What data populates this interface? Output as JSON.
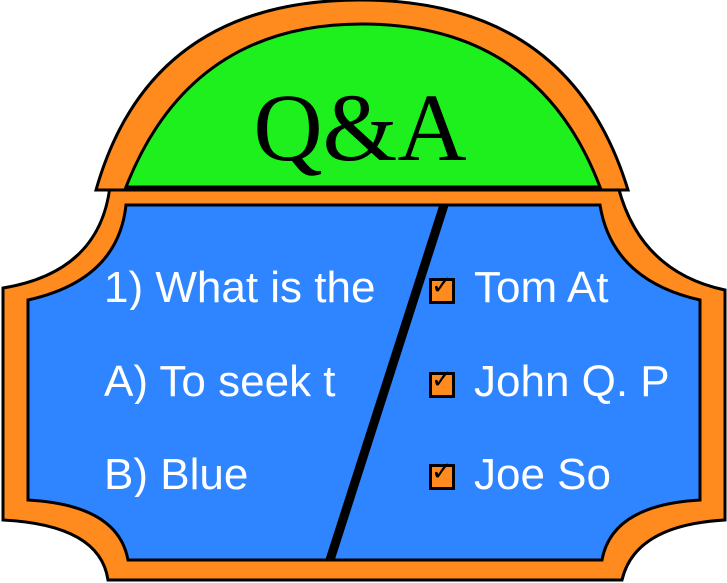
{
  "title": "Q&A",
  "question": {
    "text": "1) What is the",
    "options": [
      "A) To seek t",
      "B) Blue"
    ]
  },
  "answers": [
    {
      "label": "Tom At",
      "checked": true
    },
    {
      "label": "John Q. P",
      "checked": true
    },
    {
      "label": "Joe So",
      "checked": true
    }
  ],
  "check_glyph": "✓",
  "colors": {
    "frame": "#ff8a1e",
    "panel": "#2f85ff",
    "dome": "#1ef01e",
    "outline": "#000000",
    "text": "#ffffff"
  }
}
